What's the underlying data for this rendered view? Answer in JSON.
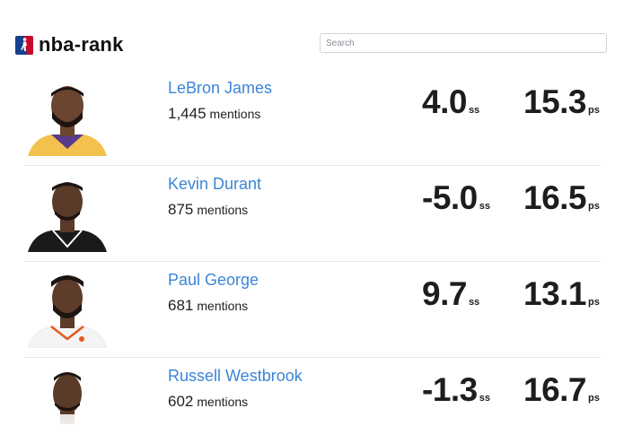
{
  "app": {
    "brand": "nba-rank",
    "logo_icon": "nba-logo-icon"
  },
  "search": {
    "placeholder": "Search",
    "value": ""
  },
  "colors": {
    "link": "#3b85d6",
    "text": "#222222",
    "logo_red": "#c9082a",
    "logo_blue": "#17408b"
  },
  "players": [
    {
      "name": "LeBron James",
      "count": "1,445",
      "mentions_label": "mentions",
      "ss_value": "4.0",
      "ss_unit": "ss",
      "ps_value": "15.3",
      "ps_unit": "ps",
      "jersey_color": "#f2c14e"
    },
    {
      "name": "Kevin Durant",
      "count": "875",
      "mentions_label": "mentions",
      "ss_value": "-5.0",
      "ss_unit": "ss",
      "ps_value": "16.5",
      "ps_unit": "ps",
      "jersey_color": "#1a1a1a"
    },
    {
      "name": "Paul George",
      "count": "681",
      "mentions_label": "mentions",
      "ss_value": "9.7",
      "ss_unit": "ss",
      "ps_value": "13.1",
      "ps_unit": "ps",
      "jersey_color": "#f4f4f4"
    },
    {
      "name": "Russell Westbrook",
      "count": "602",
      "mentions_label": "mentions",
      "ss_value": "-1.3",
      "ss_unit": "ss",
      "ps_value": "16.7",
      "ps_unit": "ps",
      "jersey_color": "#ffffff"
    }
  ]
}
